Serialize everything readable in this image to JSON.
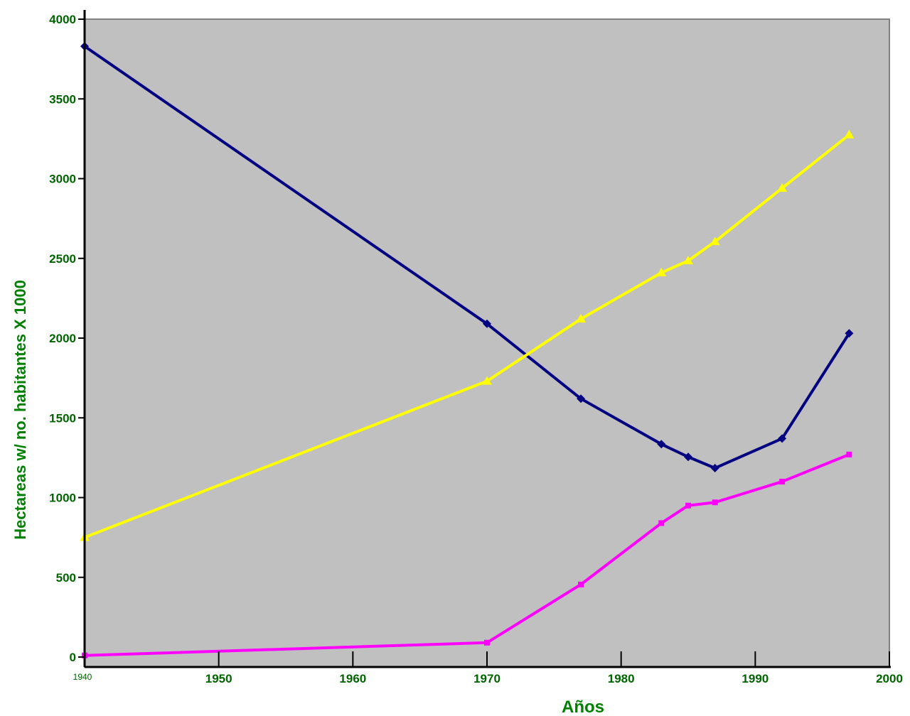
{
  "chart_data": {
    "type": "line",
    "title": "",
    "xlabel": "Años",
    "ylabel": "Hectareas w/ no. habitantes X 1000",
    "xlim": [
      1940,
      2000
    ],
    "ylim": [
      0,
      4000
    ],
    "x_ticks": [
      1940,
      1950,
      1960,
      1970,
      1980,
      1990,
      2000
    ],
    "x_tick_labels": [
      "1940",
      "1950",
      "1960",
      "1970",
      "1980",
      "1990",
      "2000"
    ],
    "y_ticks": [
      0,
      500,
      1000,
      1500,
      2000,
      2500,
      3000,
      3500,
      4000
    ],
    "y_tick_labels": [
      "0",
      "500",
      "1000",
      "1500",
      "2000",
      "2500",
      "3000",
      "3500",
      "4000"
    ],
    "grid": false,
    "legend": "none",
    "plot_background": "#c0c0c0",
    "series": [
      {
        "color": "#000080",
        "marker": "diamond",
        "x": [
          1940,
          1970,
          1977,
          1983,
          1985,
          1987,
          1992,
          1997
        ],
        "y": [
          3830,
          2090,
          1620,
          1335,
          1255,
          1185,
          1370,
          2030
        ]
      },
      {
        "color": "#ff00ff",
        "marker": "square",
        "x": [
          1940,
          1970,
          1977,
          1983,
          1985,
          1987,
          1992,
          1997
        ],
        "y": [
          10,
          90,
          455,
          840,
          950,
          970,
          1100,
          1270
        ]
      },
      {
        "color": "#ffff00",
        "marker": "triangle",
        "x": [
          1940,
          1970,
          1977,
          1983,
          1985,
          1987,
          1992,
          1997
        ],
        "y": [
          750,
          1730,
          2120,
          2410,
          2485,
          2605,
          2940,
          3275
        ]
      }
    ],
    "colors": {
      "axis_text": "#006400",
      "x_title": "#008000",
      "y_title": "#008000",
      "tick_text": "#006400"
    }
  }
}
